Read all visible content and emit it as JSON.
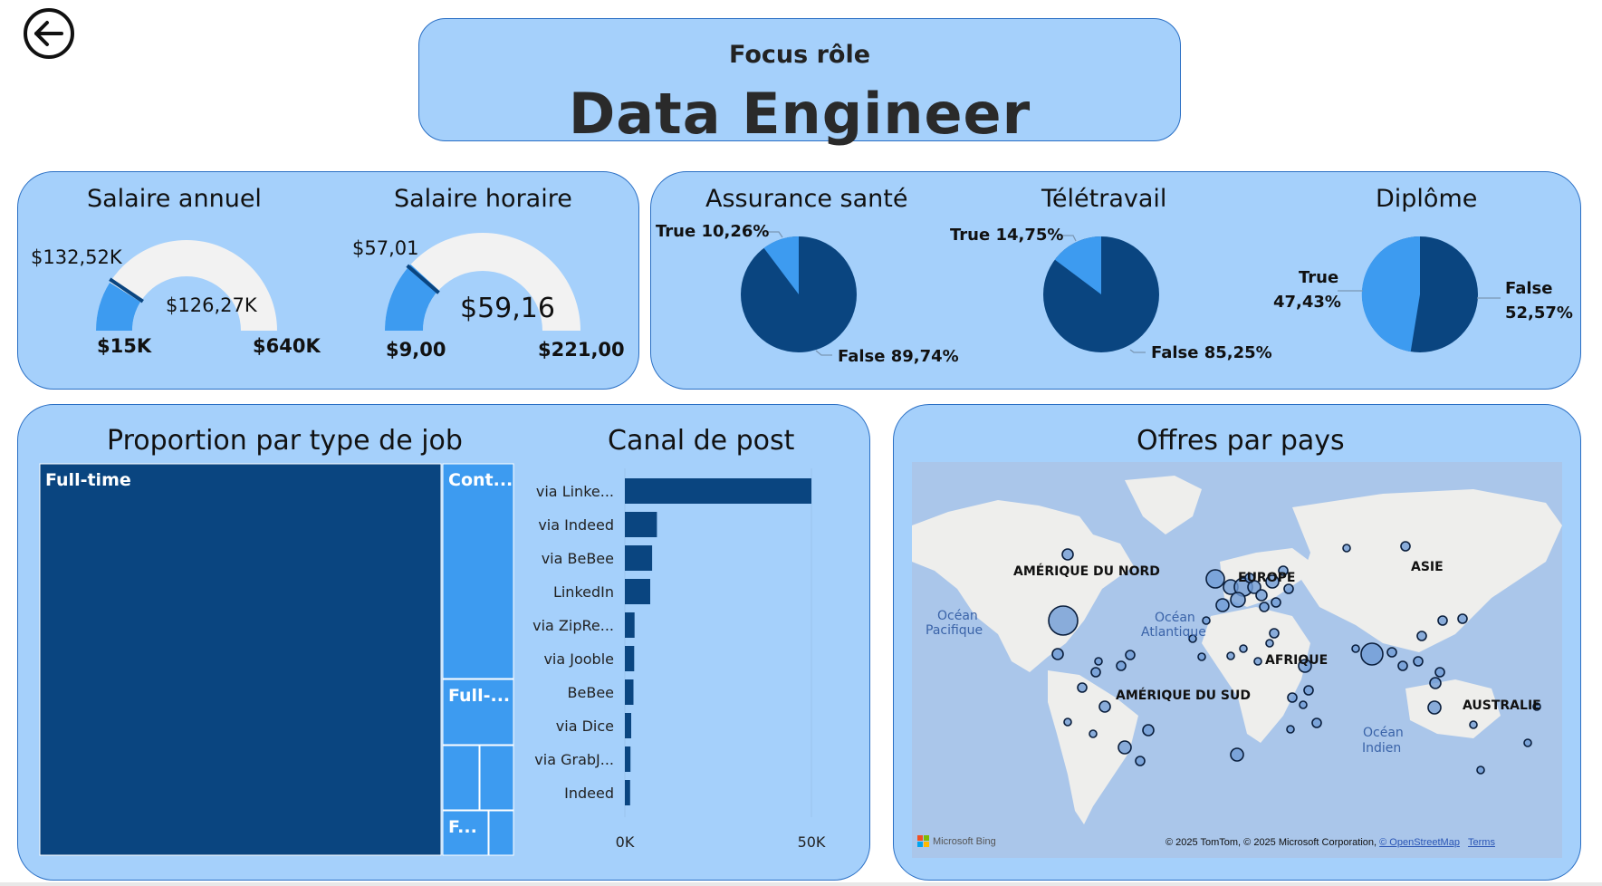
{
  "header": {
    "focus_label": "Focus rôle",
    "role_title": "Data Engineer"
  },
  "nav": {
    "back_icon": "arrow-left-circle-icon"
  },
  "gauges": [
    {
      "title": "Salaire annuel",
      "min_label": "$15K",
      "max_label": "$640K",
      "value_label": "$126,27K",
      "target_label": "$132,52K",
      "min": 15,
      "max": 640,
      "value": 126.27,
      "target": 132.52
    },
    {
      "title": "Salaire horaire",
      "min_label": "$9,00",
      "max_label": "$221,00",
      "value_label": "$59,16",
      "target_label": "$57,01",
      "min": 9,
      "max": 221,
      "value": 59.16,
      "target": 57.01
    }
  ],
  "pies": [
    {
      "title": "Assurance santé",
      "true_label": "True 10,26%",
      "false_label": "False 89,74%",
      "true_pct": 10.26,
      "false_pct": 89.74
    },
    {
      "title": "Télétravail",
      "true_label": "True 14,75%",
      "false_label": "False 85,25%",
      "true_pct": 14.75,
      "false_pct": 85.25
    },
    {
      "title": "Diplôme",
      "true_label_1": "True",
      "true_label_2": "47,43%",
      "false_label_1": "False",
      "false_label_2": "52,57%",
      "true_pct": 47.43,
      "false_pct": 52.57
    }
  ],
  "treemap": {
    "title": "Proportion par type de job",
    "tiles": [
      {
        "label": "Full-time"
      },
      {
        "label": "Cont..."
      },
      {
        "label": "Full-..."
      },
      {
        "label": ""
      },
      {
        "label": ""
      },
      {
        "label": "F..."
      },
      {
        "label": ""
      }
    ]
  },
  "canal": {
    "title": "Canal de post",
    "tick_0": "0K",
    "tick_50": "50K"
  },
  "map": {
    "title": "Offres par pays",
    "labels": {
      "north_america": "AMÉRIQUE DU NORD",
      "europe": "EUROPE",
      "asie": "ASIE",
      "afrique": "AFRIQUE",
      "south_america": "AMÉRIQUE DU SUD",
      "australie": "AUSTRALIE",
      "pacific_1": "Océan",
      "pacific_2": "Pacifique",
      "atlantic_1": "Océan",
      "atlantic_2": "Atlantique",
      "indian_1": "Océan",
      "indian_2": "Indien"
    },
    "bing_label": "Microsoft Bing",
    "copyright": "© 2025 TomTom, © 2025 Microsoft Corporation,",
    "osm_link": "© OpenStreetMap",
    "terms_link": "Terms"
  },
  "colors": {
    "panel_bg": "#a5d0fb",
    "panel_border": "#2a6fc4",
    "dark_blue": "#0a4580",
    "mid_blue": "#3d9bf0",
    "gauge_track": "#f2f2f2",
    "ocean": "#aac6ea",
    "land": "#eeeeec"
  },
  "chart_data": {
    "type": "bar",
    "title": "Canal de post",
    "orientation": "horizontal",
    "categories": [
      "via Linke...",
      "via Indeed",
      "via BeBee",
      "LinkedIn",
      "via ZipRe...",
      "via Jooble",
      "BeBee",
      "via Dice",
      "via GrabJ...",
      "Indeed"
    ],
    "values": [
      50000,
      8600,
      7300,
      6800,
      2600,
      2500,
      2300,
      1700,
      1500,
      1400
    ],
    "xlim": [
      0,
      50000
    ],
    "xticks": [
      "0K",
      "50K"
    ]
  }
}
